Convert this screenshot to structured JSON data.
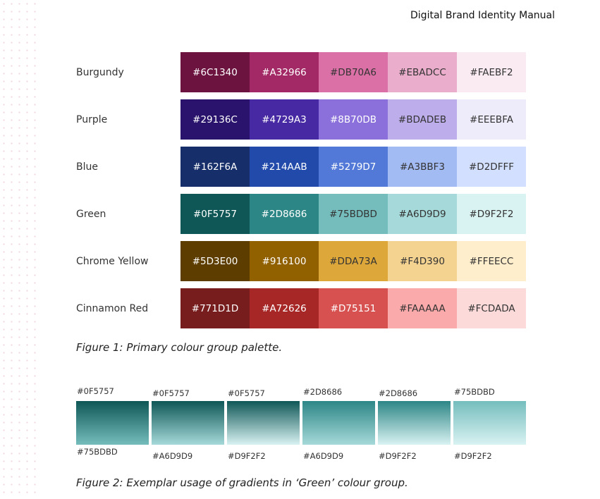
{
  "header": {
    "title": "Digital Brand Identity Manual"
  },
  "palette": [
    {
      "name": "Burgundy",
      "colors": [
        "#6C1340",
        "#A32966",
        "#DB70A6",
        "#EBADCC",
        "#FAEBF2"
      ]
    },
    {
      "name": "Purple",
      "colors": [
        "#29136C",
        "#4729A3",
        "#8B70DB",
        "#BDADEB",
        "#EEEBFA"
      ]
    },
    {
      "name": "Blue",
      "colors": [
        "#162F6A",
        "#214AAB",
        "#5279D7",
        "#A3BBF3",
        "#D2DFFF"
      ]
    },
    {
      "name": "Green",
      "colors": [
        "#0F5757",
        "#2D8686",
        "#75BDBD",
        "#A6D9D9",
        "#D9F2F2"
      ]
    },
    {
      "name": "Chrome Yellow",
      "colors": [
        "#5D3E00",
        "#916100",
        "#DDA73A",
        "#F4D390",
        "#FFEECC"
      ]
    },
    {
      "name": "Cinnamon Red",
      "colors": [
        "#771D1D",
        "#A72626",
        "#D75151",
        "#FAAAAA",
        "#FCDADA"
      ]
    }
  ],
  "figure1_caption": "Figure 1: Primary colour group palette.",
  "gradients": [
    {
      "from": "#0F5757",
      "to": "#75BDBD"
    },
    {
      "from": "#0F5757",
      "to": "#A6D9D9"
    },
    {
      "from": "#0F5757",
      "to": "#D9F2F2"
    },
    {
      "from": "#2D8686",
      "to": "#A6D9D9"
    },
    {
      "from": "#2D8686",
      "to": "#D9F2F2"
    },
    {
      "from": "#75BDBD",
      "to": "#D9F2F2"
    }
  ],
  "figure2_caption": "Figure 2: Exemplar usage of gradients in ‘Green’ colour group."
}
